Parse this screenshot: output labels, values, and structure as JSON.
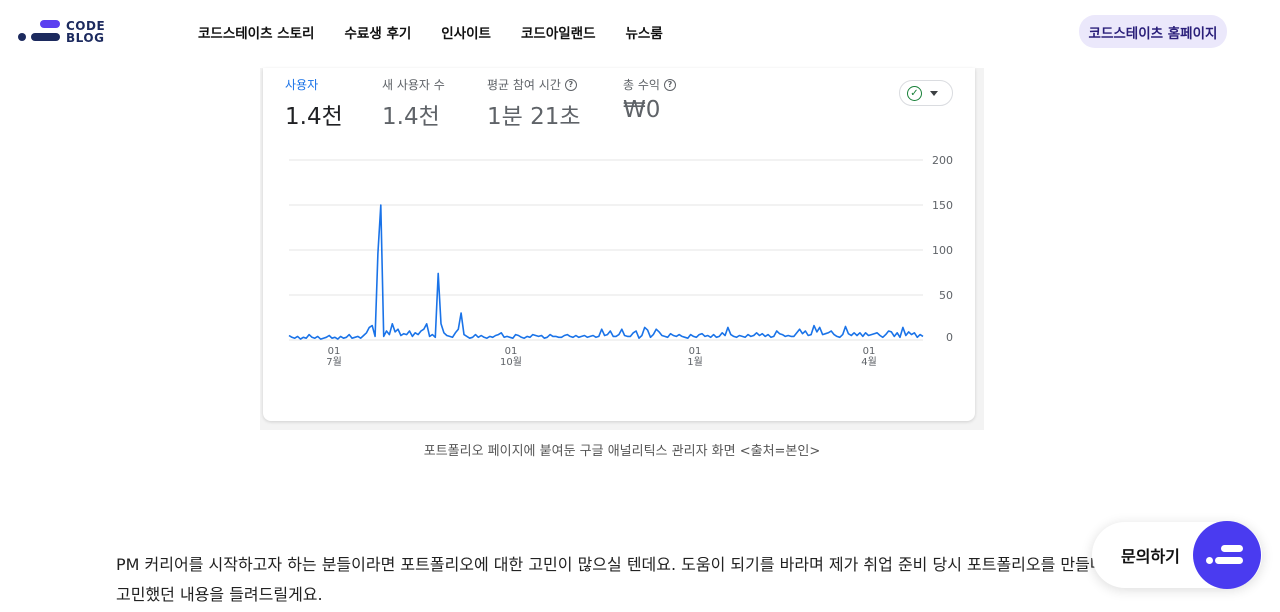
{
  "header": {
    "logo_line1": "CODE",
    "logo_line2": "BLOG",
    "nav": [
      "코드스테이츠 스토리",
      "수료생 후기",
      "인사이트",
      "코드아일랜드",
      "뉴스룸"
    ],
    "home_button": "코드스테이츠 홈페이지"
  },
  "analytics": {
    "metrics": [
      {
        "label": "사용자",
        "value": "1.4천",
        "help": false,
        "active": true
      },
      {
        "label": "새 사용자 수",
        "value": "1.4천",
        "help": false,
        "active": false
      },
      {
        "label": "평균 참여 시간",
        "value": "1분 21초",
        "help": true,
        "active": false
      },
      {
        "label": "총 수익",
        "value": "₩0",
        "help": true,
        "active": false
      }
    ],
    "help_glyph": "?",
    "status_glyph": "✓",
    "accent_color": "#1a73e8"
  },
  "chart_data": {
    "type": "line",
    "y_ticks": [
      "200",
      "150",
      "100",
      "50",
      "0"
    ],
    "ylim": [
      0,
      200
    ],
    "x_tick_labels": [
      {
        "day": "01",
        "month": "7월"
      },
      {
        "day": "01",
        "month": "10월"
      },
      {
        "day": "01",
        "month": "1월"
      },
      {
        "day": "01",
        "month": "4월"
      }
    ],
    "series": [
      {
        "values": [
          5,
          3,
          2,
          4,
          1,
          3,
          2,
          6,
          3,
          2,
          4,
          1,
          2,
          3,
          5,
          2,
          3,
          1,
          4,
          2,
          3,
          6,
          2,
          3,
          4,
          2,
          5,
          8,
          14,
          16,
          4,
          96,
          150,
          4,
          10,
          6,
          18,
          9,
          12,
          5,
          7,
          6,
          10,
          4,
          8,
          6,
          10,
          12,
          18,
          4,
          6,
          3,
          74,
          18,
          8,
          5,
          4,
          3,
          8,
          12,
          30,
          6,
          4,
          2,
          3,
          6,
          3,
          5,
          3,
          2,
          4,
          3,
          5,
          6,
          8,
          3,
          4,
          3,
          2,
          6,
          5,
          3,
          2,
          4,
          3,
          6,
          5,
          4,
          5,
          2,
          3,
          6,
          4,
          4,
          3,
          3,
          5,
          6,
          4,
          3,
          5,
          3,
          4,
          5,
          3,
          4,
          5,
          3,
          4,
          12,
          5,
          6,
          10,
          4,
          4,
          6,
          12,
          5,
          4,
          4,
          8,
          10,
          2,
          5,
          14,
          11,
          3,
          6,
          12,
          9,
          5,
          4,
          3,
          7,
          5,
          4,
          6,
          4,
          3,
          2,
          6,
          4,
          3,
          6,
          7,
          4,
          5,
          3,
          6,
          3,
          4,
          8,
          5,
          14,
          6,
          4,
          3,
          5,
          4,
          3,
          6,
          4,
          5,
          8,
          5,
          7,
          4,
          6,
          3,
          4,
          10,
          7,
          6,
          4,
          5,
          4,
          4,
          8,
          12,
          7,
          10,
          5,
          6,
          16,
          9,
          14,
          6,
          7,
          8,
          10,
          6,
          4,
          3,
          6,
          15,
          7,
          5,
          8,
          5,
          8,
          4,
          8,
          5,
          6,
          7,
          8,
          5,
          3,
          6,
          10,
          9,
          4,
          8,
          3,
          14,
          5,
          9,
          6,
          8,
          3,
          6,
          4
        ]
      }
    ]
  },
  "caption": "포트폴리오 페이지에 붙여둔 구글 애널리틱스 관리자 화면 <출처=본인>",
  "paragraph": "PM 커리어를 시작하고자 하는 분들이라면 포트폴리오에 대한 고민이 많으실 텐데요. 도움이 되기를 바라며 제가 취업 준비 당시 포트폴리오를 만들며 고민했던 내용을 들려드릴게요.",
  "contact_label": "문의하기"
}
